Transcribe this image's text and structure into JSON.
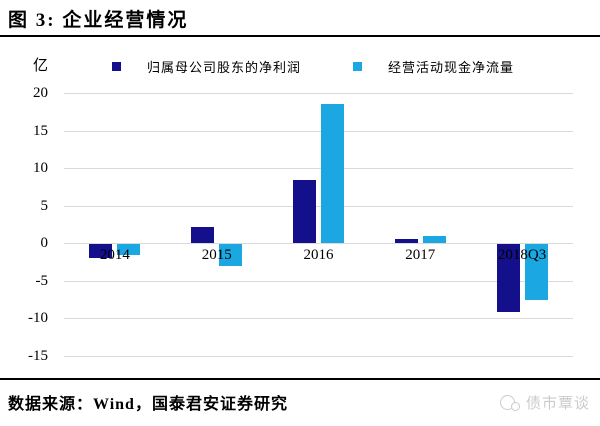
{
  "title": "图 3: 企业经营情况",
  "unit_label": "亿",
  "source_note": "数据来源：Wind，国泰君安证券研究",
  "watermark": {
    "icon": "chat-bubbles-icon",
    "text": "债市覃谈"
  },
  "colors": {
    "series_net_profit": "#14108C",
    "series_cash_flow": "#1BA8E2",
    "gridline": "#d9d9d9",
    "rule": "#000000",
    "watermark": "#cbcbcb"
  },
  "chart_data": {
    "type": "bar",
    "title": "企业经营情况",
    "categories": [
      "2014",
      "2015",
      "2016",
      "2017",
      "2018Q3"
    ],
    "series": [
      {
        "name": "归属母公司股东的净利润",
        "color": "#14108C",
        "values": [
          -1.8,
          2.1,
          8.4,
          0.5,
          -9.1
        ]
      },
      {
        "name": "经营活动现金净流量",
        "color": "#1BA8E2",
        "values": [
          -1.5,
          -2.9,
          18.5,
          0.9,
          -7.4
        ]
      }
    ],
    "xlabel": "",
    "ylabel": "亿",
    "ylim": [
      -15,
      20
    ],
    "yticks": [
      20,
      15,
      10,
      5,
      0,
      -5,
      -10,
      -15
    ],
    "grid": true,
    "legend_position": "top"
  }
}
